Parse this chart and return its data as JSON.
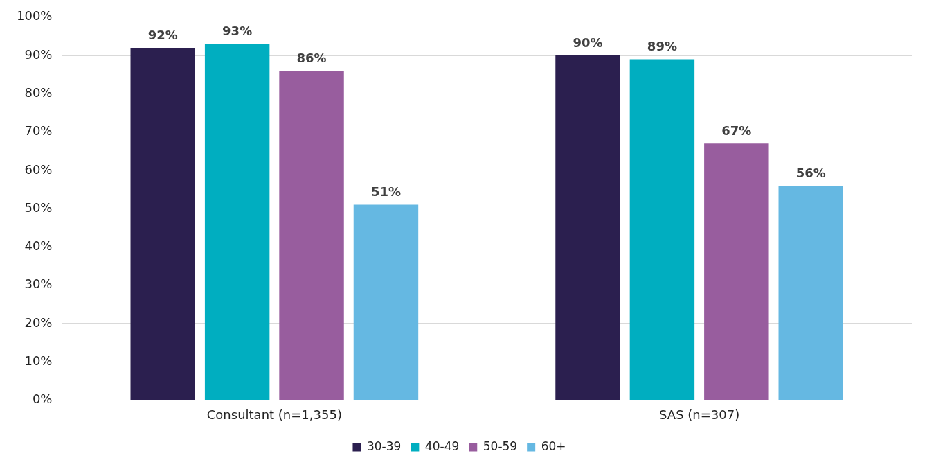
{
  "chart_data": {
    "type": "bar",
    "categories": [
      "Consultant (n=1,355)",
      "SAS (n=307)"
    ],
    "series": [
      {
        "name": "30-39",
        "color": "#2b1f4f",
        "values": [
          92,
          90
        ],
        "value_labels": [
          "92%",
          "90%"
        ]
      },
      {
        "name": "40-49",
        "color": "#00aec0",
        "values": [
          93,
          89
        ],
        "value_labels": [
          "93%",
          "89%"
        ]
      },
      {
        "name": "50-59",
        "color": "#985d9e",
        "values": [
          86,
          67
        ],
        "value_labels": [
          "86%",
          "67%"
        ]
      },
      {
        "name": "60+",
        "color": "#65b8e2",
        "values": [
          51,
          56
        ],
        "value_labels": [
          "51%",
          "56%"
        ]
      }
    ],
    "ylim": [
      0,
      100
    ],
    "yticks": [
      {
        "value": 0,
        "label": "0%"
      },
      {
        "value": 10,
        "label": "10%"
      },
      {
        "value": 20,
        "label": "20%"
      },
      {
        "value": 30,
        "label": "30%"
      },
      {
        "value": 40,
        "label": "40%"
      },
      {
        "value": 50,
        "label": "50%"
      },
      {
        "value": 60,
        "label": "60%"
      },
      {
        "value": 70,
        "label": "70%"
      },
      {
        "value": 80,
        "label": "80%"
      },
      {
        "value": 90,
        "label": "90%"
      },
      {
        "value": 100,
        "label": "100%"
      }
    ],
    "grid": "y",
    "legend": "bottom"
  }
}
